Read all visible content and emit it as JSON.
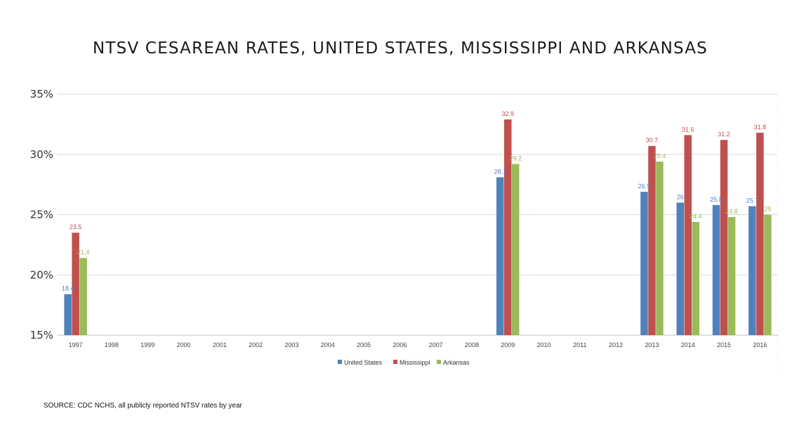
{
  "title": "NTSV CESAREAN RATES, UNITED STATES, MISSISSIPPI AND ARKANSAS",
  "source": "SOURCE: CDC NCHS, all publicly reported NTSV rates by year",
  "chart_data": {
    "type": "bar",
    "title": "NTSV CESAREAN RATES, UNITED STATES, MISSISSIPPI AND ARKANSAS",
    "xlabel": "",
    "ylabel": "",
    "categories": [
      "1997",
      "1998",
      "1999",
      "2000",
      "2001",
      "2002",
      "2003",
      "2004",
      "2005",
      "2006",
      "2007",
      "2008",
      "2009",
      "2010",
      "2011",
      "2012",
      "2013",
      "2014",
      "2015",
      "2016"
    ],
    "ylim": [
      15,
      35
    ],
    "yticks": [
      15,
      20,
      25,
      30,
      35
    ],
    "ytick_labels": [
      "15%",
      "20%",
      "25%",
      "30%",
      "35%"
    ],
    "grid": true,
    "legend_position": "bottom",
    "series": [
      {
        "name": "United States",
        "color": "#4f81bd",
        "label_color": "#4f81bd",
        "values": [
          18.4,
          null,
          null,
          null,
          null,
          null,
          null,
          null,
          null,
          null,
          null,
          null,
          28.1,
          null,
          null,
          null,
          26.9,
          26,
          25.8,
          25.7
        ]
      },
      {
        "name": "Mississippi",
        "color": "#c0504d",
        "label_color": "#c0504d",
        "values": [
          23.5,
          null,
          null,
          null,
          null,
          null,
          null,
          null,
          null,
          null,
          null,
          null,
          32.9,
          null,
          null,
          null,
          30.7,
          31.6,
          31.2,
          31.8
        ]
      },
      {
        "name": "Arkansas",
        "color": "#9bbb59",
        "label_color": "#9bbb59",
        "values": [
          21.4,
          null,
          null,
          null,
          null,
          null,
          null,
          null,
          null,
          null,
          null,
          null,
          29.2,
          null,
          null,
          null,
          29.4,
          24.4,
          24.8,
          25
        ]
      }
    ]
  }
}
